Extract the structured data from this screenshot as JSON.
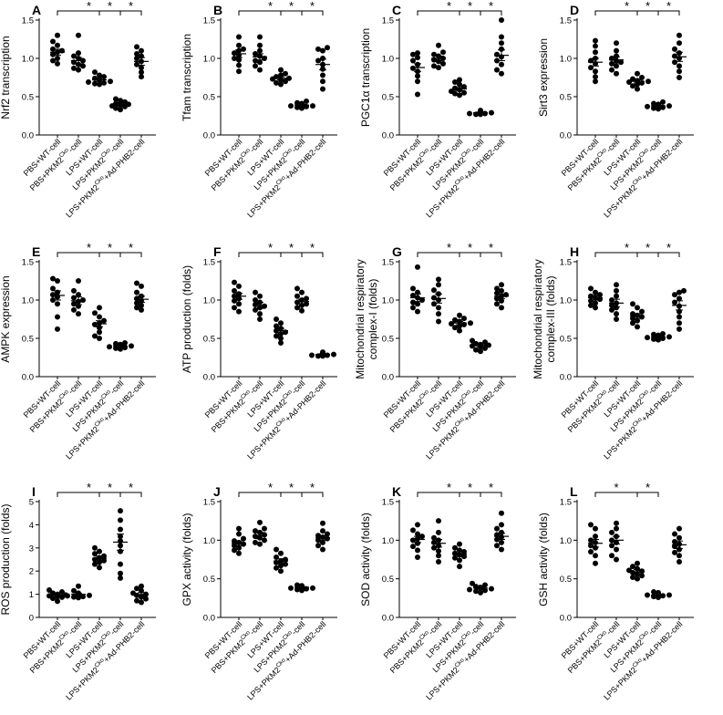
{
  "groups": [
    "PBS+WT-cell",
    "PBS+PKM2Cko-cell",
    "LPS+WT-cell",
    "LPS+PKM2Cko-cell",
    "LPS+PKM2Cko+Ad-PHB2-cell"
  ],
  "group_parts": [
    {
      "pre": "PBS+WT-cell",
      "sup": "",
      "post": ""
    },
    {
      "pre": "PBS+PKM2",
      "sup": "Cko",
      "post": "-cell"
    },
    {
      "pre": "LPS+WT-cell",
      "sup": "",
      "post": ""
    },
    {
      "pre": "LPS+PKM2",
      "sup": "Cko",
      "post": "-cell"
    },
    {
      "pre": "LPS+PKM2",
      "sup": "Cko",
      "post": "+Ad-PHB2-cell"
    }
  ],
  "significance_marker": "*",
  "chart_data": [
    {
      "panel": "A",
      "type": "scatter",
      "ylabel": "Nrf2 transcription",
      "ylim": [
        0,
        1.5
      ],
      "yticks": [
        "0.0",
        "0.5",
        "1.0",
        "1.5"
      ],
      "means": [
        1.08,
        0.97,
        0.72,
        0.4,
        0.96
      ],
      "sem": [
        0.04,
        0.04,
        0.02,
        0.02,
        0.05
      ],
      "points": [
        [
          1.3,
          1.22,
          1.17,
          1.12,
          1.1,
          1.08,
          1.05,
          1.0,
          0.97,
          0.93
        ],
        [
          1.3,
          1.07,
          1.03,
          1.0,
          0.97,
          0.95,
          0.92,
          0.9,
          0.87,
          0.85
        ],
        [
          0.82,
          0.78,
          0.76,
          0.74,
          0.72,
          0.7,
          0.69,
          0.68,
          0.67,
          0.66
        ],
        [
          0.47,
          0.45,
          0.43,
          0.41,
          0.4,
          0.39,
          0.38,
          0.37,
          0.35,
          0.33
        ],
        [
          1.15,
          1.1,
          1.06,
          1.03,
          1.0,
          0.96,
          0.92,
          0.88,
          0.82,
          0.76
        ]
      ],
      "brackets": [
        [
          0,
          3
        ],
        [
          2,
          3
        ],
        [
          3,
          4
        ]
      ]
    },
    {
      "panel": "B",
      "type": "scatter",
      "ylabel": "Tfam transcription",
      "ylim": [
        0,
        1.5
      ],
      "yticks": [
        "0.0",
        "0.5",
        "1.0",
        "1.5"
      ],
      "means": [
        1.06,
        1.02,
        0.74,
        0.39,
        0.92
      ],
      "sem": [
        0.05,
        0.04,
        0.02,
        0.01,
        0.07
      ],
      "points": [
        [
          1.28,
          1.17,
          1.12,
          1.1,
          1.07,
          1.04,
          1.0,
          0.98,
          0.91,
          0.83
        ],
        [
          1.28,
          1.17,
          1.1,
          1.06,
          1.03,
          1.0,
          0.97,
          0.95,
          0.9,
          0.85
        ],
        [
          0.85,
          0.8,
          0.78,
          0.76,
          0.74,
          0.73,
          0.72,
          0.7,
          0.68,
          0.66
        ],
        [
          0.44,
          0.42,
          0.41,
          0.4,
          0.39,
          0.38,
          0.38,
          0.37,
          0.36,
          0.35
        ],
        [
          1.14,
          1.12,
          1.1,
          1.0,
          0.97,
          0.92,
          0.86,
          0.78,
          0.7,
          0.6
        ]
      ],
      "brackets": [
        [
          0,
          3
        ],
        [
          2,
          3
        ],
        [
          3,
          4
        ]
      ]
    },
    {
      "panel": "C",
      "type": "scatter",
      "ylabel": "PGC1α transcription",
      "ylim": [
        0,
        1.5
      ],
      "yticks": [
        "0.0",
        "0.5",
        "1.0",
        "1.5"
      ],
      "means": [
        0.88,
        1.0,
        0.6,
        0.29,
        1.04
      ],
      "sem": [
        0.05,
        0.03,
        0.02,
        0.01,
        0.07
      ],
      "points": [
        [
          1.07,
          1.05,
          1.01,
          0.97,
          0.92,
          0.87,
          0.83,
          0.77,
          0.7,
          0.53
        ],
        [
          1.17,
          1.08,
          1.05,
          1.03,
          1.0,
          0.98,
          0.96,
          0.93,
          0.9,
          0.88
        ],
        [
          0.72,
          0.69,
          0.66,
          0.63,
          0.61,
          0.59,
          0.57,
          0.55,
          0.54,
          0.52
        ],
        [
          0.32,
          0.31,
          0.3,
          0.3,
          0.29,
          0.29,
          0.28,
          0.28,
          0.27,
          0.27
        ],
        [
          1.5,
          1.28,
          1.2,
          1.12,
          1.05,
          1.02,
          0.97,
          0.92,
          0.85,
          0.8
        ]
      ],
      "brackets": [
        [
          0,
          3
        ],
        [
          2,
          3
        ],
        [
          3,
          4
        ]
      ]
    },
    {
      "panel": "D",
      "type": "scatter",
      "ylabel": "Sirt3 expression",
      "ylim": [
        0,
        1.5
      ],
      "yticks": [
        "0.0",
        "0.5",
        "1.0",
        "1.5"
      ],
      "means": [
        0.95,
        0.98,
        0.7,
        0.38,
        1.02
      ],
      "sem": [
        0.05,
        0.04,
        0.02,
        0.01,
        0.06
      ],
      "points": [
        [
          1.23,
          1.16,
          1.08,
          1.0,
          0.97,
          0.93,
          0.88,
          0.83,
          0.76,
          0.7
        ],
        [
          1.2,
          1.1,
          1.03,
          1.0,
          0.97,
          0.95,
          0.93,
          0.9,
          0.85,
          0.8
        ],
        [
          0.8,
          0.75,
          0.73,
          0.71,
          0.7,
          0.69,
          0.68,
          0.66,
          0.64,
          0.6
        ],
        [
          0.43,
          0.41,
          0.4,
          0.39,
          0.38,
          0.38,
          0.37,
          0.36,
          0.35,
          0.34
        ],
        [
          1.3,
          1.2,
          1.12,
          1.07,
          1.03,
          1.0,
          0.95,
          0.9,
          0.83,
          0.75
        ]
      ],
      "brackets": [
        [
          0,
          3
        ],
        [
          2,
          3
        ],
        [
          3,
          4
        ]
      ]
    },
    {
      "panel": "E",
      "type": "scatter",
      "ylabel": "AMPK expression",
      "ylim": [
        0,
        1.5
      ],
      "yticks": [
        "0.0",
        "0.5",
        "1.0",
        "1.5"
      ],
      "means": [
        1.06,
        0.99,
        0.69,
        0.4,
        1.01
      ],
      "sem": [
        0.06,
        0.05,
        0.04,
        0.01,
        0.04
      ],
      "points": [
        [
          1.28,
          1.25,
          1.15,
          1.1,
          1.07,
          1.04,
          1.0,
          0.95,
          0.78,
          0.62
        ],
        [
          1.25,
          1.12,
          1.07,
          1.03,
          1.0,
          0.98,
          0.95,
          0.92,
          0.87,
          0.82
        ],
        [
          0.9,
          0.83,
          0.78,
          0.73,
          0.7,
          0.68,
          0.64,
          0.58,
          0.53,
          0.5
        ],
        [
          0.44,
          0.43,
          0.42,
          0.41,
          0.4,
          0.4,
          0.39,
          0.38,
          0.37,
          0.36
        ],
        [
          1.22,
          1.18,
          1.1,
          1.05,
          1.02,
          0.99,
          0.96,
          0.93,
          0.9,
          0.87
        ]
      ],
      "brackets": [
        [
          0,
          3
        ],
        [
          2,
          3
        ],
        [
          3,
          4
        ]
      ]
    },
    {
      "panel": "F",
      "type": "scatter",
      "ylabel": "ATP production (folds)",
      "ylim": [
        0,
        1.5
      ],
      "yticks": [
        "0.0",
        "0.5",
        "1.0",
        "1.5"
      ],
      "means": [
        1.05,
        0.93,
        0.6,
        0.98,
        0.29
      ],
      "sem": [
        0.04,
        0.04,
        0.03,
        0.03,
        0.01
      ],
      "points": [
        [
          1.23,
          1.18,
          1.12,
          1.08,
          1.05,
          1.02,
          0.99,
          0.95,
          0.9,
          0.85
        ],
        [
          1.1,
          1.05,
          1.0,
          0.97,
          0.94,
          0.92,
          0.9,
          0.87,
          0.82,
          0.75
        ],
        [
          0.75,
          0.7,
          0.66,
          0.63,
          0.6,
          0.58,
          0.56,
          0.53,
          0.5,
          0.44
        ],
        [
          1.15,
          1.1,
          1.05,
          1.02,
          1.0,
          0.97,
          0.95,
          0.93,
          0.9,
          0.86
        ],
        [
          0.32,
          0.31,
          0.3,
          0.3,
          0.29,
          0.29,
          0.28,
          0.28,
          0.27,
          0.27
        ]
      ],
      "brackets": [
        [
          0,
          3
        ],
        [
          2,
          3
        ],
        [
          3,
          4
        ]
      ]
    },
    {
      "panel": "G",
      "type": "scatter",
      "ylabel": "Mitochondrial respiratory complex-I (folds)",
      "ylim": [
        0,
        1.5
      ],
      "yticks": [
        "0.0",
        "0.5",
        "1.0",
        "1.5"
      ],
      "means": [
        1.03,
        1.02,
        0.7,
        0.41,
        1.05
      ],
      "sem": [
        0.05,
        0.06,
        0.02,
        0.02,
        0.03
      ],
      "points": [
        [
          1.43,
          1.15,
          1.1,
          1.06,
          1.03,
          1.0,
          0.97,
          0.95,
          0.9,
          0.85
        ],
        [
          1.27,
          1.2,
          1.13,
          1.08,
          1.03,
          1.0,
          0.95,
          0.9,
          0.82,
          0.72
        ],
        [
          0.8,
          0.76,
          0.74,
          0.72,
          0.7,
          0.69,
          0.68,
          0.66,
          0.64,
          0.6
        ],
        [
          0.47,
          0.45,
          0.43,
          0.42,
          0.41,
          0.4,
          0.39,
          0.37,
          0.35,
          0.33
        ],
        [
          1.2,
          1.15,
          1.12,
          1.09,
          1.07,
          1.05,
          1.02,
          0.99,
          0.95,
          0.9
        ]
      ],
      "brackets": [
        [
          0,
          3
        ],
        [
          2,
          3
        ],
        [
          3,
          4
        ]
      ]
    },
    {
      "panel": "H",
      "type": "scatter",
      "ylabel": "Mitochondrial respiratory complex-III (folds)",
      "ylim": [
        0,
        1.5
      ],
      "yticks": [
        "0.0",
        "0.5",
        "1.0",
        "1.5"
      ],
      "means": [
        1.03,
        0.96,
        0.79,
        0.52,
        0.93
      ],
      "sem": [
        0.03,
        0.05,
        0.03,
        0.01,
        0.06
      ],
      "points": [
        [
          1.15,
          1.1,
          1.07,
          1.05,
          1.03,
          1.01,
          0.99,
          0.96,
          0.93,
          0.9
        ],
        [
          1.2,
          1.12,
          1.05,
          1.0,
          0.96,
          0.93,
          0.9,
          0.87,
          0.82,
          0.75
        ],
        [
          0.95,
          0.9,
          0.85,
          0.82,
          0.8,
          0.78,
          0.76,
          0.73,
          0.7,
          0.65
        ],
        [
          0.56,
          0.55,
          0.54,
          0.53,
          0.52,
          0.52,
          0.51,
          0.5,
          0.49,
          0.48
        ],
        [
          1.12,
          1.1,
          1.07,
          1.02,
          0.97,
          0.92,
          0.85,
          0.78,
          0.7,
          0.62
        ]
      ],
      "brackets": [
        [
          0,
          3
        ],
        [
          2,
          3
        ],
        [
          3,
          4
        ]
      ]
    },
    {
      "panel": "I",
      "type": "scatter",
      "ylabel": "ROS production (folds)",
      "ylim": [
        0,
        5
      ],
      "yticks": [
        "0",
        "1",
        "2",
        "3",
        "4",
        "5"
      ],
      "means": [
        0.96,
        1.0,
        2.55,
        3.25,
        0.99
      ],
      "sem": [
        0.05,
        0.05,
        0.09,
        0.35,
        0.08
      ],
      "points": [
        [
          1.18,
          1.1,
          1.05,
          1.0,
          0.97,
          0.93,
          0.9,
          0.87,
          0.82,
          0.7
        ],
        [
          1.35,
          1.15,
          1.05,
          1.0,
          0.97,
          0.95,
          0.93,
          0.9,
          0.88,
          0.85
        ],
        [
          3.0,
          2.85,
          2.75,
          2.65,
          2.58,
          2.5,
          2.45,
          2.38,
          2.3,
          2.15
        ],
        [
          4.6,
          4.2,
          3.8,
          3.5,
          3.3,
          3.1,
          2.85,
          2.3,
          1.9,
          1.7
        ],
        [
          1.35,
          1.25,
          1.15,
          1.05,
          1.0,
          0.95,
          0.88,
          0.8,
          0.72,
          0.65
        ]
      ],
      "brackets": [
        [
          0,
          3
        ],
        [
          2,
          3
        ],
        [
          3,
          4
        ]
      ]
    },
    {
      "panel": "J",
      "type": "scatter",
      "ylabel": "GPX activity (folds)",
      "ylim": [
        0,
        1.5
      ],
      "yticks": [
        "0.0",
        "0.5",
        "1.0",
        "1.5"
      ],
      "means": [
        0.96,
        1.06,
        0.73,
        0.39,
        1.03
      ],
      "sem": [
        0.03,
        0.04,
        0.03,
        0.01,
        0.03
      ],
      "points": [
        [
          1.15,
          1.08,
          1.02,
          0.99,
          0.97,
          0.95,
          0.93,
          0.9,
          0.87,
          0.83
        ],
        [
          1.23,
          1.15,
          1.12,
          1.1,
          1.07,
          1.05,
          1.03,
          1.0,
          0.97,
          0.95
        ],
        [
          0.88,
          0.83,
          0.78,
          0.75,
          0.73,
          0.71,
          0.69,
          0.67,
          0.64,
          0.6
        ],
        [
          0.42,
          0.41,
          0.4,
          0.39,
          0.39,
          0.38,
          0.38,
          0.37,
          0.36,
          0.35
        ],
        [
          1.22,
          1.12,
          1.08,
          1.06,
          1.04,
          1.02,
          1.0,
          0.97,
          0.93,
          0.88
        ]
      ],
      "brackets": [
        [
          0,
          3
        ],
        [
          2,
          3
        ],
        [
          3,
          4
        ]
      ]
    },
    {
      "panel": "K",
      "type": "scatter",
      "ylabel": "SOD activity (folds)",
      "ylim": [
        0,
        1.5
      ],
      "yticks": [
        "0.0",
        "0.5",
        "1.0",
        "1.5"
      ],
      "means": [
        1.01,
        0.96,
        0.82,
        0.38,
        1.05
      ],
      "sem": [
        0.04,
        0.05,
        0.03,
        0.01,
        0.04
      ],
      "points": [
        [
          1.2,
          1.13,
          1.08,
          1.05,
          1.02,
          1.0,
          0.96,
          0.92,
          0.87,
          0.78
        ],
        [
          1.25,
          1.1,
          1.03,
          1.0,
          0.97,
          0.93,
          0.9,
          0.86,
          0.8,
          0.72
        ],
        [
          0.95,
          0.9,
          0.87,
          0.85,
          0.83,
          0.81,
          0.79,
          0.77,
          0.74,
          0.66
        ],
        [
          0.44,
          0.42,
          0.4,
          0.39,
          0.38,
          0.37,
          0.36,
          0.35,
          0.34,
          0.32
        ],
        [
          1.35,
          1.2,
          1.15,
          1.1,
          1.07,
          1.04,
          1.01,
          0.97,
          0.93,
          0.88
        ]
      ],
      "brackets": [
        [
          0,
          3
        ],
        [
          2,
          3
        ],
        [
          3,
          4
        ]
      ]
    },
    {
      "panel": "L",
      "type": "scatter",
      "ylabel": "GSH activity (folds)",
      "ylim": [
        0,
        1.5
      ],
      "yticks": [
        "0.0",
        "0.5",
        "1.0",
        "1.5"
      ],
      "means": [
        0.96,
        1.0,
        0.59,
        0.29,
        0.94
      ],
      "sem": [
        0.05,
        0.05,
        0.03,
        0.01,
        0.05
      ],
      "points": [
        [
          1.2,
          1.15,
          1.05,
          1.0,
          0.97,
          0.93,
          0.9,
          0.85,
          0.8,
          0.7
        ],
        [
          1.22,
          1.15,
          1.1,
          1.05,
          1.0,
          0.97,
          0.93,
          0.88,
          0.8,
          0.75
        ],
        [
          0.7,
          0.66,
          0.63,
          0.61,
          0.6,
          0.58,
          0.56,
          0.54,
          0.52,
          0.5
        ],
        [
          0.33,
          0.32,
          0.31,
          0.3,
          0.3,
          0.29,
          0.29,
          0.28,
          0.27,
          0.26
        ],
        [
          1.15,
          1.08,
          1.03,
          0.98,
          0.95,
          0.92,
          0.88,
          0.84,
          0.8,
          0.72
        ]
      ],
      "brackets": [
        [
          0,
          2
        ],
        [
          2,
          3
        ]
      ]
    }
  ]
}
